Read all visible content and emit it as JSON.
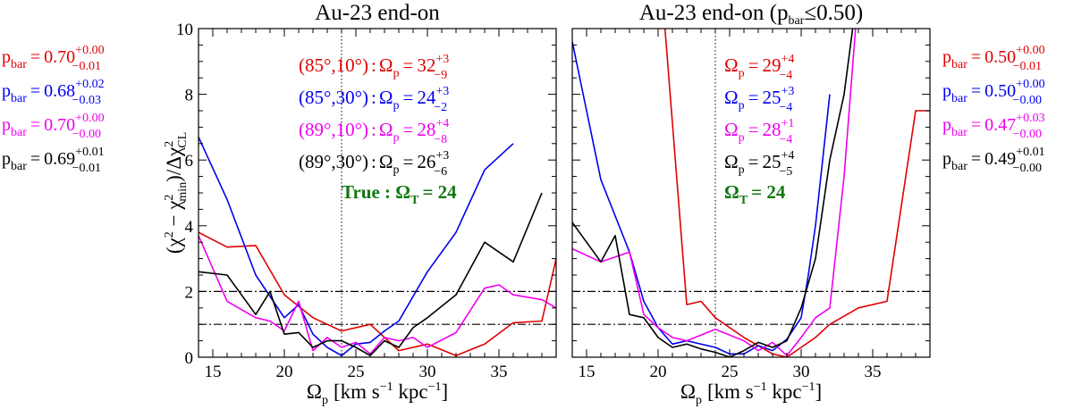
{
  "colors": {
    "red": "#e00000",
    "blue": "#0000ee",
    "magenta": "#ee00ee",
    "black": "#000000",
    "green": "#117711"
  },
  "chart_data": [
    {
      "type": "line",
      "title": "Au-23 end-on",
      "xlabel": "Ω_p [km s⁻¹ kpc⁻¹]",
      "ylabel": "(χ² − χ²_min)/Δχ²_CL",
      "xlim": [
        14,
        39
      ],
      "ylim": [
        0,
        10
      ],
      "xticks": [
        "15",
        "20",
        "25",
        "30",
        "35"
      ],
      "yticks": [
        "0",
        "2",
        "4",
        "6",
        "8",
        "10"
      ],
      "vline": 24,
      "hlines": [
        1,
        2
      ],
      "series": [
        {
          "name": "(85°,10°)",
          "color": "#e00000",
          "x": [
            14,
            16,
            18,
            20,
            22,
            24,
            26,
            28,
            30,
            32,
            34,
            36,
            38,
            39
          ],
          "y": [
            3.8,
            3.35,
            3.4,
            1.9,
            1.2,
            0.8,
            1.0,
            0.2,
            0.4,
            0.05,
            0.4,
            1.05,
            1.1,
            3.0
          ]
        },
        {
          "name": "(85°,30°)",
          "color": "#0000ee",
          "x": [
            14,
            16,
            18,
            20,
            21,
            22,
            23,
            24,
            25,
            26,
            27,
            28,
            30,
            32,
            34,
            36
          ],
          "y": [
            6.7,
            4.8,
            2.5,
            1.2,
            1.6,
            0.7,
            0.3,
            0.05,
            0.4,
            0.45,
            0.8,
            1.1,
            2.6,
            3.8,
            5.7,
            6.5
          ]
        },
        {
          "name": "(89°,10°)",
          "color": "#ee00ee",
          "x": [
            14,
            16,
            18,
            19,
            20,
            21,
            22,
            23,
            24,
            25,
            26,
            27,
            28,
            29,
            30,
            32,
            34,
            35,
            36,
            38,
            39
          ],
          "y": [
            3.7,
            1.7,
            1.2,
            1.1,
            0.8,
            1.7,
            0.2,
            0.6,
            0.3,
            0.45,
            0.1,
            0.6,
            0.5,
            0.6,
            0.3,
            0.75,
            2.1,
            2.2,
            1.9,
            1.75,
            1.5
          ]
        },
        {
          "name": "(89°,30°)",
          "color": "#000000",
          "x": [
            14,
            16,
            18,
            19,
            20,
            21,
            22,
            23,
            24,
            25,
            26,
            27,
            28,
            29,
            30,
            32,
            34,
            36,
            38
          ],
          "y": [
            2.6,
            2.5,
            1.3,
            2.0,
            0.7,
            0.75,
            0.3,
            0.5,
            0.5,
            0.3,
            0.05,
            0.5,
            0.3,
            0.9,
            1.2,
            1.9,
            3.5,
            2.9,
            5.0
          ]
        }
      ],
      "annotations": [
        {
          "color": "#e00000",
          "angle": "(85°,10°)",
          "value": "32",
          "plus": "+3",
          "minus": "−9"
        },
        {
          "color": "#0000ee",
          "angle": "(85°,30°)",
          "value": "24",
          "plus": "+3",
          "minus": "−2"
        },
        {
          "color": "#ee00ee",
          "angle": "(89°,10°)",
          "value": "28",
          "plus": "+4",
          "minus": "−8"
        },
        {
          "color": "#000000",
          "angle": "(89°,30°)",
          "value": "26",
          "plus": "+3",
          "minus": "−6"
        }
      ],
      "true_label": "True : Ω",
      "true_sub": "T",
      "true_value": "= 24",
      "side_labels": [
        {
          "color": "#e00000",
          "value": "0.70",
          "plus": "+0.00",
          "minus": "−0.01"
        },
        {
          "color": "#0000ee",
          "value": "0.68",
          "plus": "+0.02",
          "minus": "−0.03"
        },
        {
          "color": "#ee00ee",
          "value": "0.70",
          "plus": "+0.00",
          "minus": "−0.00"
        },
        {
          "color": "#000000",
          "value": "0.69",
          "plus": "+0.01",
          "minus": "−0.01"
        }
      ]
    },
    {
      "type": "line",
      "title": "Au-23 end-on (p",
      "title_sub": "bar",
      "title_tail": "≤0.50)",
      "xlabel": "Ω_p [km s⁻¹ kpc⁻¹]",
      "xlim": [
        14,
        39
      ],
      "ylim": [
        0,
        10
      ],
      "xticks": [
        "15",
        "20",
        "25",
        "30",
        "35"
      ],
      "yticks": [
        "0",
        "2",
        "4",
        "6",
        "8",
        "10"
      ],
      "vline": 24,
      "hlines": [
        1,
        2
      ],
      "series": [
        {
          "name": "(85°,10°)",
          "color": "#e00000",
          "x": [
            20.3,
            22,
            23,
            24,
            26,
            28,
            29,
            30,
            31,
            32,
            34,
            36,
            38,
            39
          ],
          "y": [
            11,
            1.6,
            1.7,
            1.2,
            0.6,
            0.1,
            0.0,
            0.3,
            0.6,
            1.0,
            1.5,
            1.7,
            7.5,
            7.5
          ]
        },
        {
          "name": "(85°,30°)",
          "color": "#0000ee",
          "x": [
            14,
            16,
            18,
            19,
            20,
            21,
            22,
            24,
            25,
            26,
            27,
            28,
            29,
            30,
            30.5,
            31,
            32
          ],
          "y": [
            9.6,
            5.4,
            3.2,
            1.7,
            0.9,
            0.4,
            0.5,
            0.3,
            0.1,
            0.1,
            0.35,
            0.2,
            0.55,
            1.2,
            2.5,
            4.0,
            8.0
          ]
        },
        {
          "name": "(89°,10°)",
          "color": "#ee00ee",
          "x": [
            14,
            16,
            18,
            19,
            20,
            21,
            22,
            24,
            26,
            27,
            28,
            29,
            30,
            31,
            32,
            33,
            33.8
          ],
          "y": [
            3.3,
            2.9,
            3.2,
            1.3,
            0.9,
            0.6,
            0.5,
            0.85,
            0.5,
            0.2,
            0.45,
            0.05,
            0.6,
            1.2,
            1.5,
            5.5,
            10.0
          ]
        },
        {
          "name": "(89°,30°)",
          "color": "#000000",
          "x": [
            14,
            16,
            17,
            18,
            19,
            20,
            21,
            22,
            23,
            24,
            25,
            26,
            27,
            28,
            29,
            30,
            31,
            32,
            33,
            33.6
          ],
          "y": [
            4.1,
            2.9,
            3.7,
            1.3,
            1.2,
            0.6,
            0.3,
            0.4,
            0.25,
            0.15,
            0.0,
            0.2,
            0.45,
            0.3,
            0.5,
            1.5,
            3.0,
            6.0,
            8.0,
            10.0
          ]
        }
      ],
      "annotations": [
        {
          "color": "#e00000",
          "value": "29",
          "plus": "+4",
          "minus": "−4"
        },
        {
          "color": "#0000ee",
          "value": "25",
          "plus": "+3",
          "minus": "−4"
        },
        {
          "color": "#ee00ee",
          "value": "28",
          "plus": "+1",
          "minus": "−4"
        },
        {
          "color": "#000000",
          "value": "25",
          "plus": "+4",
          "minus": "−5"
        }
      ],
      "true_label": "Ω",
      "true_sub": "T",
      "true_value": "= 24",
      "side_labels": [
        {
          "color": "#e00000",
          "value": "0.50",
          "plus": "+0.00",
          "minus": "−0.01"
        },
        {
          "color": "#0000ee",
          "value": "0.50",
          "plus": "+0.00",
          "minus": "−0.00"
        },
        {
          "color": "#ee00ee",
          "value": "0.47",
          "plus": "+0.03",
          "minus": "−0.00"
        },
        {
          "color": "#000000",
          "value": "0.49",
          "plus": "+0.01",
          "minus": "−0.00"
        }
      ]
    }
  ],
  "labels": {
    "omega": "Ω",
    "omega_sub": "p",
    "eq": "=",
    "colon": ":",
    "p": "p",
    "p_sub": "bar",
    "xlabel_units": "[km s",
    "xlabel_exp1": "−1",
    "xlabel_mid": " kpc",
    "xlabel_exp2": "−1",
    "xlabel_close": "]",
    "ylabel_a": "(χ",
    "ylabel_2": "2",
    "ylabel_b": " − χ",
    "ylabel_min": "min",
    "ylabel_c": ")/Δχ",
    "ylabel_cl": "CL"
  }
}
